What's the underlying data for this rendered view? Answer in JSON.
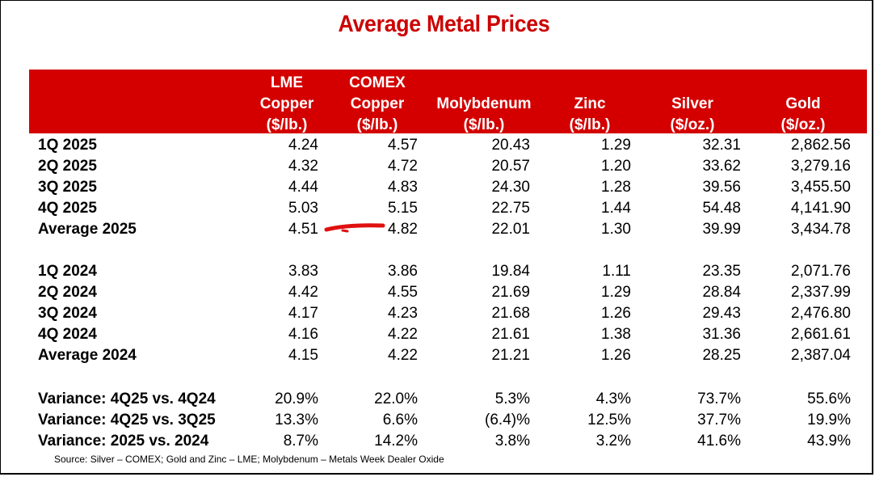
{
  "title": "Average Metal Prices",
  "columns": [
    {
      "line1": "LME",
      "line2": "Copper",
      "unit": "($/lb.)"
    },
    {
      "line1": "COMEX",
      "line2": "Copper",
      "unit": "($/lb.)"
    },
    {
      "line1": "",
      "line2": "Molybdenum",
      "unit": "($/lb.)"
    },
    {
      "line1": "",
      "line2": "Zinc",
      "unit": "($/lb.)"
    },
    {
      "line1": "",
      "line2": "Silver",
      "unit": "($/oz.)"
    },
    {
      "line1": "",
      "line2": "Gold",
      "unit": "($/oz.)"
    }
  ],
  "rows": [
    {
      "label": "1Q 2025",
      "values": [
        "4.24",
        "4.57",
        "20.43",
        "1.29",
        "32.31",
        "2,862.56"
      ]
    },
    {
      "label": "2Q 2025",
      "values": [
        "4.32",
        "4.72",
        "20.57",
        "1.20",
        "33.62",
        "3,279.16"
      ]
    },
    {
      "label": "3Q 2025",
      "values": [
        "4.44",
        "4.83",
        "24.30",
        "1.28",
        "39.56",
        "3,455.50"
      ]
    },
    {
      "label": "4Q 2025",
      "values": [
        "5.03",
        "5.15",
        "22.75",
        "1.44",
        "54.48",
        "4,141.90"
      ]
    },
    {
      "label": "Average 2025",
      "values": [
        "4.51",
        "4.82",
        "22.01",
        "1.30",
        "39.99",
        "3,434.78"
      ]
    },
    {
      "label": "1Q 2024",
      "values": [
        "3.83",
        "3.86",
        "19.84",
        "1.11",
        "23.35",
        "2,071.76"
      ]
    },
    {
      "label": "2Q 2024",
      "values": [
        "4.42",
        "4.55",
        "21.69",
        "1.29",
        "28.84",
        "2,337.99"
      ]
    },
    {
      "label": "3Q 2024",
      "values": [
        "4.17",
        "4.23",
        "21.68",
        "1.26",
        "29.43",
        "2,476.80"
      ]
    },
    {
      "label": "4Q 2024",
      "values": [
        "4.16",
        "4.22",
        "21.61",
        "1.38",
        "31.36",
        "2,661.61"
      ]
    },
    {
      "label": "Average 2024",
      "values": [
        "4.15",
        "4.22",
        "21.21",
        "1.26",
        "28.25",
        "2,387.04"
      ]
    },
    {
      "label": "Variance: 4Q25 vs. 4Q24",
      "values": [
        "20.9%",
        "22.0%",
        "5.3%",
        "4.3%",
        "73.7%",
        "55.6%"
      ]
    },
    {
      "label": "Variance: 4Q25 vs. 3Q25",
      "values": [
        "13.3%",
        "6.6%",
        "(6.4)%",
        "12.5%",
        "37.7%",
        "19.9%"
      ]
    },
    {
      "label": "Variance: 2025 vs. 2024",
      "values": [
        "8.7%",
        "14.2%",
        "3.8%",
        "3.2%",
        "41.6%",
        "43.9%"
      ]
    }
  ],
  "source": "Source:  Silver – COMEX; Gold and Zinc – LME; Molybdenum – Metals Week Dealer Oxide",
  "colors": {
    "title": "#cc0000",
    "header_band": "#d40000",
    "annotation_mark": "#e01010"
  }
}
